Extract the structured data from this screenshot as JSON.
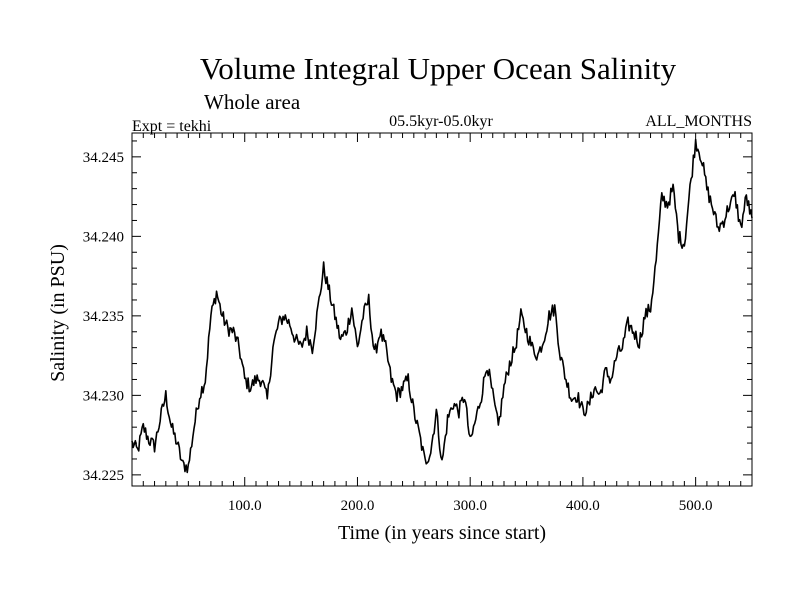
{
  "chart_data": {
    "type": "line",
    "title": "Volume Integral Upper Ocean Salinity",
    "subtitle": "Whole area",
    "experiment_label": "Expt = tekhi",
    "period_label": "05.5kyr-05.0kyr",
    "months_label": "ALL_MONTHS",
    "xlabel": "Time (in years since start)",
    "ylabel": "Salinity (in PSU)",
    "xlim": [
      0,
      550
    ],
    "ylim": [
      34.2243,
      34.2465
    ],
    "xticks_major": [
      100,
      200,
      300,
      400,
      500
    ],
    "xtick_labels": [
      "100.0",
      "200.0",
      "300.0",
      "400.0",
      "500.0"
    ],
    "yticks_major": [
      34.225,
      34.23,
      34.235,
      34.24,
      34.245
    ],
    "ytick_labels": [
      "34.225",
      "34.230",
      "34.235",
      "34.240",
      "34.245"
    ],
    "grid": false,
    "line_color": "#000000",
    "series": [
      {
        "name": "salinity",
        "x": [
          0,
          5,
          10,
          15,
          20,
          25,
          30,
          35,
          40,
          45,
          50,
          55,
          60,
          65,
          70,
          75,
          80,
          85,
          90,
          95,
          100,
          105,
          110,
          115,
          120,
          125,
          130,
          135,
          140,
          145,
          150,
          155,
          160,
          165,
          170,
          175,
          180,
          185,
          190,
          195,
          200,
          205,
          210,
          215,
          220,
          225,
          230,
          235,
          240,
          245,
          250,
          255,
          260,
          265,
          270,
          275,
          280,
          285,
          290,
          295,
          300,
          305,
          310,
          315,
          320,
          325,
          330,
          335,
          340,
          345,
          350,
          355,
          360,
          365,
          370,
          375,
          380,
          385,
          390,
          395,
          400,
          405,
          410,
          415,
          420,
          425,
          430,
          435,
          440,
          445,
          450,
          455,
          460,
          465,
          470,
          475,
          480,
          485,
          490,
          495,
          500,
          505,
          510,
          515,
          520,
          525,
          530,
          535,
          540,
          545,
          550
        ],
        "values": [
          34.227,
          34.2265,
          34.228,
          34.2272,
          34.2268,
          34.2285,
          34.23,
          34.228,
          34.227,
          34.2256,
          34.2255,
          34.228,
          34.23,
          34.231,
          34.235,
          34.2365,
          34.235,
          34.2342,
          34.234,
          34.233,
          34.231,
          34.2305,
          34.231,
          34.231,
          34.2297,
          34.233,
          34.2345,
          34.235,
          34.2345,
          34.2335,
          34.233,
          34.234,
          34.233,
          34.2355,
          34.238,
          34.2365,
          34.235,
          34.2335,
          34.234,
          34.2355,
          34.233,
          34.235,
          34.236,
          34.2325,
          34.234,
          34.233,
          34.231,
          34.23,
          34.2305,
          34.231,
          34.229,
          34.2275,
          34.2258,
          34.2265,
          34.229,
          34.2257,
          34.2285,
          34.2295,
          34.229,
          34.23,
          34.227,
          34.2285,
          34.23,
          34.232,
          34.23,
          34.228,
          34.2305,
          34.232,
          34.233,
          34.235,
          34.234,
          34.233,
          34.2325,
          34.2335,
          34.235,
          34.2355,
          34.2325,
          34.231,
          34.2298,
          34.23,
          34.229,
          34.2293,
          34.2305,
          34.23,
          34.2315,
          34.231,
          34.2325,
          34.233,
          34.2345,
          34.234,
          34.2333,
          34.235,
          34.2355,
          34.2385,
          34.2425,
          34.242,
          34.243,
          34.24,
          34.2395,
          34.243,
          34.246,
          34.245,
          34.243,
          34.2418,
          34.2405,
          34.241,
          34.242,
          34.2425,
          34.2405,
          34.2425,
          34.241
        ]
      }
    ]
  }
}
